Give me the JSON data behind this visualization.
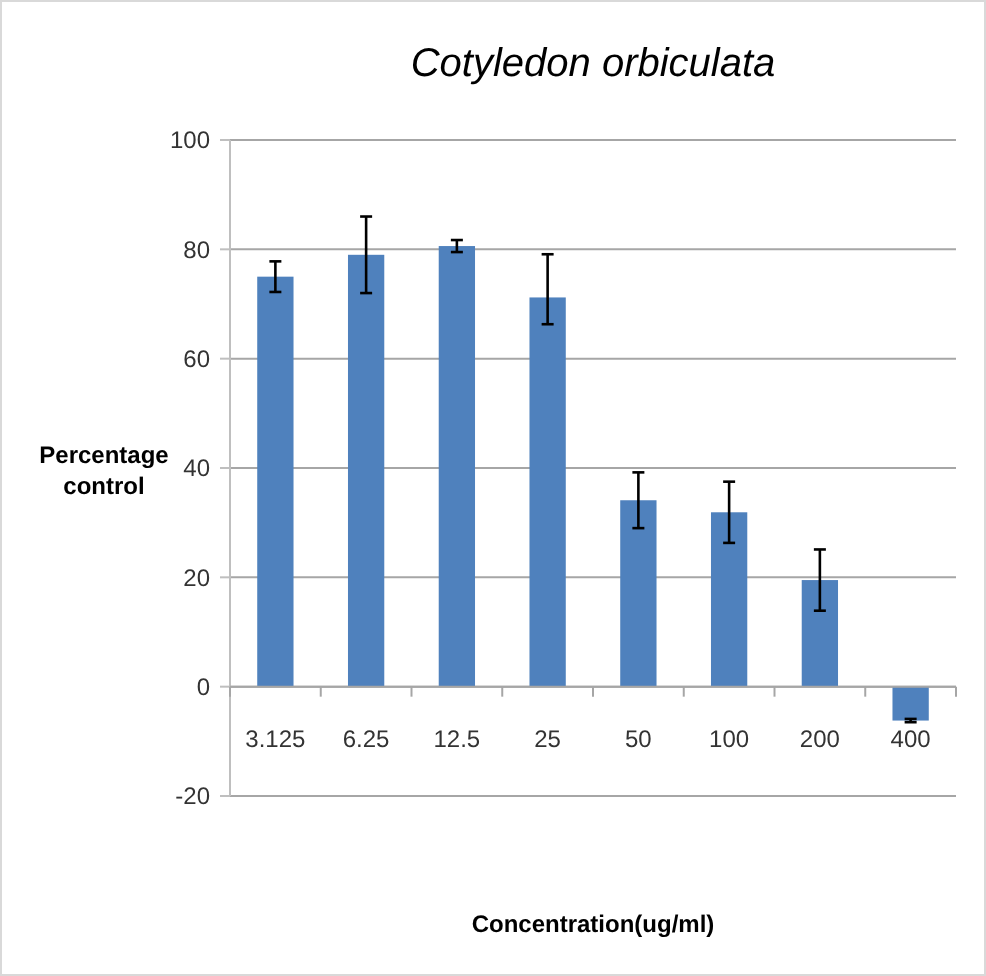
{
  "chart_data": {
    "type": "bar",
    "title": "Cotyledon orbiculata",
    "xlabel": "Concentration(ug/ml)",
    "ylabel": "Percentage control",
    "categories": [
      "3.125",
      "6.25",
      "12.5",
      "25",
      "50",
      "100",
      "200",
      "400"
    ],
    "values": [
      75.0,
      79.0,
      80.6,
      71.2,
      34.1,
      31.9,
      19.5,
      -6.2
    ],
    "errors": [
      2.8,
      7.0,
      1.1,
      [
        66.3,
        79.1
      ],
      5.1,
      5.6,
      5.6,
      0.3
    ],
    "color": "#4f81bd",
    "ylim": [
      -20,
      100
    ],
    "yticks": [
      -20,
      0,
      20,
      40,
      60,
      80,
      100
    ],
    "grid": "y"
  }
}
